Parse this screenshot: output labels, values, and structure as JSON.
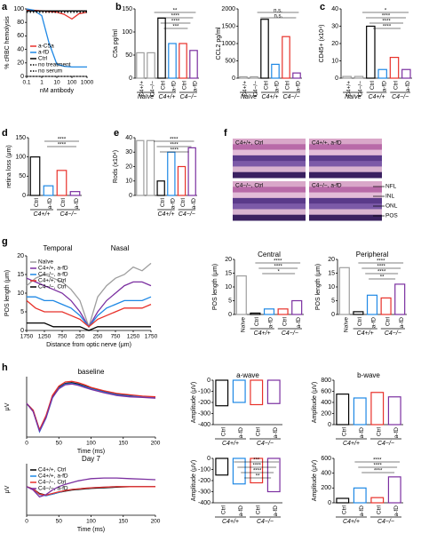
{
  "panel_labels": [
    "a",
    "b",
    "c",
    "d",
    "e",
    "f",
    "g",
    "h"
  ],
  "micrographs": {
    "labels": [
      "C4+/+, Ctrl",
      "C4+/+, a-fD",
      "C4−/−, Ctrl",
      "C4−/−, a-fD"
    ],
    "layers": [
      "NFL",
      "INL",
      "ONL",
      "POS"
    ]
  },
  "chart_data": [
    {
      "type": "line",
      "ylabel": "% cRBC hemolysis",
      "xlabel": "nM antibody",
      "log_x": true,
      "x": [
        0.1,
        0.3,
        1,
        3,
        10,
        30,
        100,
        300,
        1000
      ],
      "xlim": [
        0.1,
        1000
      ],
      "xticks": [
        0.1,
        1,
        10,
        100,
        1000
      ],
      "ylim": [
        0,
        100
      ],
      "yticks": [
        0,
        20,
        40,
        60,
        80,
        100
      ],
      "legend": "lower left",
      "series": [
        {
          "name": "a-C5a",
          "color": "#e8312a",
          "values": [
            98,
            98,
            97,
            96,
            95,
            92,
            85,
            93,
            95
          ]
        },
        {
          "name": "a-fD",
          "color": "#1e88e5",
          "values": [
            100,
            98,
            90,
            50,
            18,
            15,
            14,
            14,
            14
          ]
        },
        {
          "name": "Ctrl",
          "color": "#000000",
          "values": [
            97,
            97,
            97,
            97,
            97,
            97,
            97,
            97,
            97
          ]
        },
        {
          "name": "no treatment",
          "color": "#000000",
          "dash": true,
          "values": [
            95,
            95,
            95,
            95,
            95,
            95,
            95,
            95,
            95
          ]
        },
        {
          "name": "no serum",
          "color": "#000000",
          "dash": true,
          "values": [
            0,
            0,
            0,
            0,
            0,
            0,
            0,
            0,
            0
          ]
        }
      ]
    },
    {
      "type": "bar",
      "ylabel": "C5a pg/ml",
      "categories": [
        "C4+/+",
        "C4−/−",
        "Ctrl",
        "a-fD",
        "Ctrl",
        "a-fD"
      ],
      "groups": [
        "Naïve",
        "C4+/+",
        "C4−/−"
      ],
      "values": [
        55,
        55,
        130,
        75,
        75,
        60
      ],
      "colors": [
        "#9e9e9e",
        "#9e9e9e",
        "#000000",
        "#1e88e5",
        "#e8312a",
        "#7b2fa0"
      ],
      "ylim": [
        0,
        150
      ],
      "yticks": [
        0,
        50,
        100,
        150
      ],
      "annotations": [
        "**",
        "****",
        "****",
        "***"
      ]
    },
    {
      "type": "bar",
      "ylabel": "CCL2 pg/ml",
      "categories": [
        "C4+/+",
        "C4−/−",
        "Ctrl",
        "a-fD",
        "Ctrl",
        "a-fD"
      ],
      "groups": [
        "Naïve",
        "C4+/+",
        "C4−/−"
      ],
      "values": [
        40,
        40,
        1700,
        400,
        1200,
        150
      ],
      "colors": [
        "#9e9e9e",
        "#9e9e9e",
        "#000000",
        "#1e88e5",
        "#e8312a",
        "#7b2fa0"
      ],
      "ylim": [
        0,
        2000
      ],
      "yticks": [
        0,
        500,
        1000,
        1500,
        2000
      ],
      "annotations": [
        "n.s.",
        "n.s."
      ]
    },
    {
      "type": "bar",
      "ylabel": "CD45+ (x10⁴)",
      "categories": [
        "C4+/+",
        "C4−/−",
        "Ctrl",
        "a-fD",
        "Ctrl",
        "a-fD"
      ],
      "groups": [
        "Naïve",
        "C4+/+",
        "C4−/−"
      ],
      "values": [
        1,
        1,
        30,
        5,
        12,
        5
      ],
      "colors": [
        "#9e9e9e",
        "#9e9e9e",
        "#000000",
        "#1e88e5",
        "#e8312a",
        "#7b2fa0"
      ],
      "ylim": [
        0,
        40
      ],
      "yticks": [
        0,
        10,
        20,
        30,
        40
      ],
      "annotations": [
        "*",
        "****",
        "****",
        "****"
      ]
    },
    {
      "type": "bar",
      "ylabel": "retina loss (μm)",
      "categories": [
        "Ctrl",
        "a-fD",
        "Ctrl",
        "a-fD"
      ],
      "groups": [
        "C4+/+",
        "C4−/−"
      ],
      "values": [
        100,
        25,
        65,
        10
      ],
      "colors": [
        "#000000",
        "#1e88e5",
        "#e8312a",
        "#7b2fa0"
      ],
      "ylim": [
        0,
        150
      ],
      "yticks": [
        0,
        50,
        100,
        150
      ],
      "annotations": [
        "****",
        "****"
      ]
    },
    {
      "type": "bar",
      "ylabel": "Rods (x10⁴)",
      "categories": [
        null,
        null,
        "Ctrl",
        "a-fD",
        "Ctrl",
        "a-fD"
      ],
      "groups": [
        "C4+/+",
        "C4−/−"
      ],
      "values": [
        38,
        38,
        10,
        30,
        20,
        33
      ],
      "colors": [
        "#9e9e9e",
        "#9e9e9e",
        "#000000",
        "#1e88e5",
        "#e8312a",
        "#7b2fa0"
      ],
      "ylim": [
        0,
        40
      ],
      "yticks": [
        0,
        10,
        20,
        30,
        40
      ],
      "annotations": [
        "****",
        "****",
        "****"
      ]
    },
    {
      "type": "line",
      "ylabel": "POS length (μm)",
      "xlabel": "Distance from optic nerve (μm)",
      "annotations": [
        "Temporal",
        "Nasal"
      ],
      "x": [
        -1750,
        -1500,
        -1250,
        -1000,
        -750,
        -500,
        -250,
        0,
        250,
        500,
        750,
        1000,
        1250,
        1500,
        1750
      ],
      "xlim": [
        -1750,
        1750
      ],
      "xticks": [
        {
          "value": -1750,
          "label": "1750"
        },
        {
          "value": -1250,
          "label": "1250"
        },
        {
          "value": -750,
          "label": "750"
        },
        {
          "value": -250,
          "label": "250"
        },
        250,
        750,
        1250,
        1750
      ],
      "ylim": [
        0,
        20
      ],
      "yticks": [
        0,
        5,
        10,
        15,
        20
      ],
      "legend": "upper left",
      "series": [
        {
          "name": "Naïve",
          "color": "#9e9e9e",
          "values": [
            12,
            14,
            15,
            14,
            13,
            11,
            8,
            1,
            9,
            12,
            14,
            15,
            17,
            16,
            18
          ]
        },
        {
          "name": "C4+/+, a-fD",
          "color": "#7b2fa0",
          "values": [
            14,
            13,
            12,
            11,
            10,
            8,
            5,
            1,
            5,
            8,
            10,
            12,
            13,
            13,
            12
          ]
        },
        {
          "name": "C4−/−, a-fD",
          "color": "#1e88e5",
          "values": [
            9,
            9,
            8,
            8,
            7,
            6,
            4,
            1,
            4,
            6,
            7,
            8,
            8,
            8,
            9
          ]
        },
        {
          "name": "C4+/+, Ctrl",
          "color": "#e8312a",
          "values": [
            8,
            6,
            5,
            5,
            5,
            4,
            3,
            1,
            3,
            4,
            5,
            6,
            6,
            6,
            7
          ]
        },
        {
          "name": "C4−/−, Ctrl",
          "color": "#000000",
          "values": [
            2,
            2,
            2,
            1,
            1,
            1,
            1,
            0,
            1,
            1,
            1,
            1,
            1,
            1,
            1
          ]
        }
      ]
    },
    {
      "type": "bar",
      "title": "Central",
      "ylabel": "POS length (μm)",
      "categories": [
        "Naïve",
        "Ctrl",
        "a-fD",
        "Ctrl",
        "a-fD"
      ],
      "groups": [
        "C4+/+",
        "C4−/−"
      ],
      "values": [
        14,
        0.5,
        2,
        2,
        5
      ],
      "colors": [
        "#9e9e9e",
        "#000000",
        "#1e88e5",
        "#e8312a",
        "#7b2fa0"
      ],
      "ylim": [
        0,
        20
      ],
      "yticks": [
        0,
        5,
        10,
        15,
        20
      ],
      "annotations": [
        "****",
        "****",
        "*"
      ]
    },
    {
      "type": "bar",
      "title": "Peripheral",
      "ylabel": "POS length (μm)",
      "categories": [
        "Naïve",
        "Ctrl",
        "a-fD",
        "Ctrl",
        "a-fD"
      ],
      "groups": [
        "C4+/+",
        "C4−/−"
      ],
      "values": [
        17,
        1,
        7,
        6,
        11
      ],
      "colors": [
        "#9e9e9e",
        "#000000",
        "#1e88e5",
        "#e8312a",
        "#7b2fa0"
      ],
      "ylim": [
        0,
        20
      ],
      "yticks": [
        0,
        5,
        10,
        15,
        20
      ],
      "annotations": [
        "****",
        "****",
        "****",
        "**"
      ]
    },
    {
      "type": "line",
      "title": "baseline",
      "ylabel": "μV",
      "xlabel": "Time (ms)",
      "x": [
        0,
        10,
        20,
        30,
        40,
        50,
        60,
        70,
        80,
        90,
        100,
        120,
        140,
        160,
        180,
        200
      ],
      "xlim": [
        0,
        200
      ],
      "xticks": [
        0,
        50,
        100,
        150,
        200
      ],
      "ylim": [
        -50,
        40
      ],
      "series": [
        {
          "color": "#000000",
          "values": [
            0,
            -10,
            -40,
            -20,
            10,
            24,
            30,
            31,
            29,
            26,
            23,
            18,
            14,
            12,
            10,
            9
          ]
        },
        {
          "color": "#1e88e5",
          "values": [
            0,
            -11,
            -42,
            -22,
            8,
            23,
            29,
            30,
            28,
            25,
            22,
            17,
            13,
            11,
            10,
            9
          ]
        },
        {
          "color": "#e8312a",
          "values": [
            0,
            -10,
            -39,
            -18,
            12,
            26,
            32,
            33,
            31,
            28,
            24,
            19,
            15,
            13,
            11,
            10
          ]
        },
        {
          "color": "#7b2fa0",
          "values": [
            0,
            -12,
            -41,
            -21,
            9,
            22,
            28,
            29,
            27,
            24,
            21,
            16,
            12,
            10,
            9,
            8
          ]
        }
      ]
    },
    {
      "type": "line",
      "title": "Day 7",
      "ylabel": "μV",
      "xlabel": "Time (ms)",
      "legend": "upper left",
      "x": [
        0,
        10,
        20,
        30,
        40,
        50,
        60,
        70,
        80,
        90,
        100,
        120,
        140,
        160,
        180,
        200
      ],
      "xlim": [
        0,
        200
      ],
      "xticks": [
        0,
        50,
        100,
        150,
        200
      ],
      "ylim": [
        -50,
        40
      ],
      "series": [
        {
          "name": "C4+/+, Ctrl",
          "color": "#000000",
          "values": [
            0,
            -4,
            -12,
            -15,
            -13,
            -10,
            -8,
            -6,
            -5,
            -4,
            -3,
            -2,
            -1,
            0,
            0,
            0
          ]
        },
        {
          "name": "C4+/+, a-fD",
          "color": "#1e88e5",
          "values": [
            0,
            -5,
            -14,
            -16,
            -13,
            -10,
            -7,
            -5,
            -4,
            -3,
            -2,
            -1,
            0,
            0,
            0,
            0
          ]
        },
        {
          "name": "C4−/−, Ctrl",
          "color": "#e8312a",
          "values": [
            0,
            -4,
            -13,
            -15,
            -12,
            -9,
            -7,
            -5,
            -4,
            -3,
            -2,
            -1,
            0,
            0,
            0,
            0
          ]
        },
        {
          "name": "C4−/−, a-fD",
          "color": "#7b2fa0",
          "values": [
            0,
            -6,
            -18,
            -14,
            -6,
            0,
            4,
            7,
            10,
            12,
            14,
            15,
            15,
            14,
            13,
            12
          ]
        }
      ]
    },
    {
      "type": "bar",
      "title": "a-wave",
      "ylabel": "Amplitude (μV)",
      "categories": [
        "Ctrl",
        "a-fD",
        "Ctrl",
        "a-fD"
      ],
      "groups": [
        "C4+/+",
        "C4−/−"
      ],
      "values": [
        -230,
        -200,
        -220,
        -210
      ],
      "colors": [
        "#000000",
        "#1e88e5",
        "#e8312a",
        "#7b2fa0"
      ],
      "ylim": [
        -400,
        0
      ],
      "yticks": [
        -400,
        -300,
        -200,
        -100,
        0
      ]
    },
    {
      "type": "bar",
      "title": "b-wave",
      "ylabel": "Amplitude (μV)",
      "categories": [
        "Ctrl",
        "a-fD",
        "Ctrl",
        "a-fD"
      ],
      "groups": [
        "C4+/+",
        "C4−/−"
      ],
      "values": [
        550,
        480,
        580,
        500
      ],
      "colors": [
        "#000000",
        "#1e88e5",
        "#e8312a",
        "#7b2fa0"
      ],
      "ylim": [
        0,
        800
      ],
      "yticks": [
        0,
        200,
        400,
        600,
        800
      ]
    },
    {
      "type": "bar",
      "ylabel": "Amplitude (μV)",
      "categories": [
        "Ctrl",
        "a-fD",
        "Ctrl",
        "a-fD"
      ],
      "groups": [
        "C4+/+",
        "C4−/−"
      ],
      "values": [
        -150,
        -230,
        -220,
        -300
      ],
      "colors": [
        "#000000",
        "#1e88e5",
        "#e8312a",
        "#7b2fa0"
      ],
      "ylim": [
        -400,
        0
      ],
      "yticks": [
        -400,
        -300,
        -200,
        -100,
        0
      ],
      "annotations": [
        "***",
        "****",
        "****",
        "**"
      ]
    },
    {
      "type": "bar",
      "ylabel": "Amplitude (μV)",
      "categories": [
        "Ctrl",
        "a-fD",
        "Ctrl",
        "a-fD"
      ],
      "groups": [
        "C4+/+",
        "C4−/−"
      ],
      "values": [
        60,
        200,
        70,
        350
      ],
      "colors": [
        "#000000",
        "#1e88e5",
        "#e8312a",
        "#7b2fa0"
      ],
      "ylim": [
        0,
        600
      ],
      "yticks": [
        0,
        200,
        400,
        600
      ],
      "annotations": [
        "****",
        "****",
        "****"
      ]
    }
  ]
}
